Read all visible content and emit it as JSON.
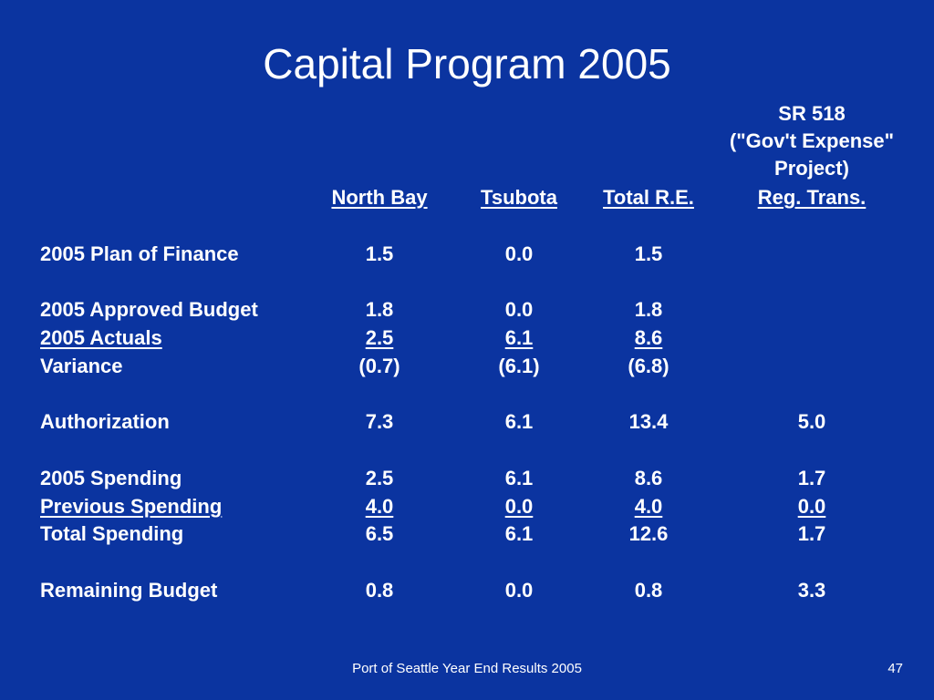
{
  "title": "Capital Program 2005",
  "sr518_header": [
    "SR 518",
    "(\"Gov't Expense\"",
    "Project)"
  ],
  "columns": [
    "North Bay",
    "Tsubota",
    "Total R.E.",
    "Reg. Trans."
  ],
  "rows": {
    "plan_of_finance": {
      "label": "2005 Plan of Finance",
      "values": [
        "1.5",
        "0.0",
        "1.5",
        ""
      ]
    },
    "approved_budget": {
      "label": "2005 Approved Budget",
      "values": [
        "1.8",
        "0.0",
        "1.8",
        ""
      ]
    },
    "actuals": {
      "label": "2005 Actuals",
      "values": [
        "2.5",
        "6.1",
        "8.6",
        ""
      ]
    },
    "variance": {
      "label": "Variance",
      "values": [
        "(0.7)",
        "(6.1)",
        "(6.8)",
        ""
      ]
    },
    "authorization": {
      "label": "Authorization",
      "values": [
        "7.3",
        "6.1",
        "13.4",
        "5.0"
      ]
    },
    "spending_2005": {
      "label": "2005 Spending",
      "values": [
        "2.5",
        "6.1",
        "8.6",
        "1.7"
      ]
    },
    "previous_spending": {
      "label": "Previous Spending",
      "values": [
        "4.0",
        "0.0",
        "4.0",
        "0.0"
      ]
    },
    "total_spending": {
      "label": "Total Spending",
      "values": [
        "6.5",
        "6.1",
        "12.6",
        "1.7"
      ]
    },
    "remaining_budget": {
      "label": "Remaining Budget",
      "values": [
        "0.8",
        "0.0",
        "0.8",
        "3.3"
      ]
    }
  },
  "footer": "Port of Seattle Year End Results 2005",
  "page_number": "47"
}
